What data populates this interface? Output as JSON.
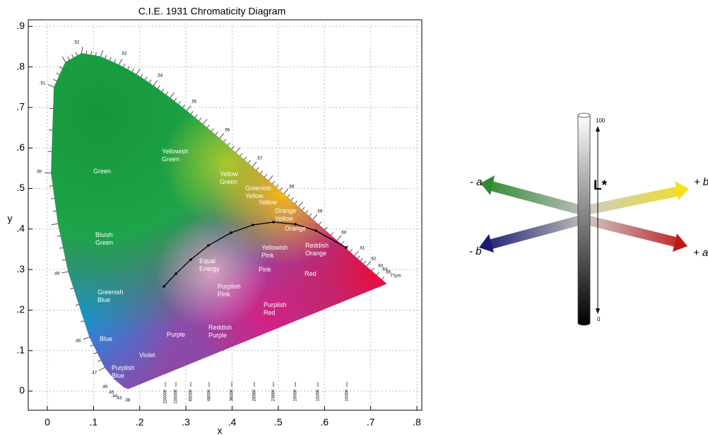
{
  "title": "C.I.E. 1931 Chromaticity Diagram",
  "x_axis": {
    "label": "x",
    "ticks": [
      "0",
      ".1",
      ".2",
      ".3",
      ".4",
      ".5",
      ".6",
      ".7",
      ".8"
    ]
  },
  "y_axis": {
    "label": "y",
    "ticks": [
      "0",
      ".1",
      ".2",
      ".3",
      ".4",
      ".5",
      ".6",
      ".7",
      ".8",
      ".9"
    ]
  },
  "regions": [
    "Green",
    "Yellowish\nGreen",
    "Yellow\nGreen",
    "Greenish\nYellow",
    "Yellow",
    "Orange\nYellow",
    "Orange",
    "Bluish\nGreen",
    "Yellowish\nPink",
    "Reddish\nOrange",
    "Equal\nEnergy",
    "Pink",
    "Red",
    "Greenish\nBlue",
    "Purplish\nPink",
    "Purplish\nRed",
    "Reddish\nPurple",
    "Purple",
    "Blue",
    "Violet",
    "Purplish\nBlue"
  ],
  "wavelengths": [
    ".52",
    ".53",
    ".54",
    ".55",
    ".56",
    ".57",
    ".58",
    ".59",
    ".60",
    ".61",
    ".62",
    ".63",
    ".64",
    ".65",
    "77μm",
    ".51",
    ".50",
    ".49",
    ".48",
    ".47",
    ".46",
    ".45",
    ".44",
    ".43",
    ".38"
  ],
  "temperatures": [
    "20000K",
    "10000K",
    "6500K",
    "4800K",
    "3600K",
    "2856K",
    "2366K",
    "1900K",
    "1500K",
    "1000K"
  ],
  "lab": {
    "minus_a": "- a",
    "plus_b": "+ b",
    "minus_b": "- b",
    "plus_a": "+ a",
    "l_star": "L*",
    "top": "100",
    "bottom": "0"
  }
}
